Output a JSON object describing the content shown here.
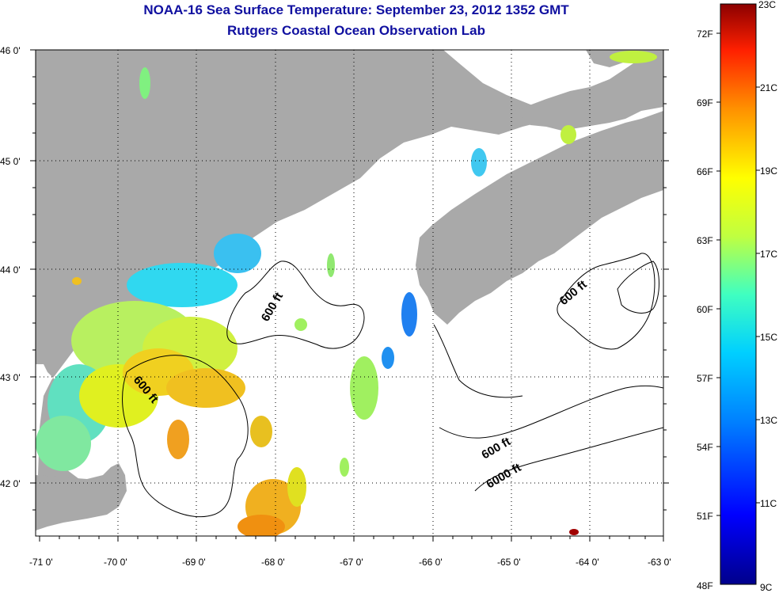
{
  "header": {
    "title": "NOAA-16 Sea Surface Temperature:  September 23, 2012 1352 GMT",
    "subtitle": "Rutgers Coastal Ocean Observation Lab"
  },
  "map": {
    "lon_range": [
      -71,
      -63
    ],
    "lat_range": [
      41.5,
      46
    ],
    "x_ticks": [
      "-71 0'",
      "-70 0'",
      "-69 0'",
      "-68 0'",
      "-67 0'",
      "-66 0'",
      "-65 0'",
      "-64 0'",
      "-63 0'"
    ],
    "y_ticks": [
      "46 0'",
      "45 0'",
      "44 0'",
      "43 0'",
      "42 0'"
    ],
    "land_color": "#a9a9a9",
    "cloud_color": "#ffffff",
    "gridlines": "dotted",
    "contour_labels": [
      "600 ft",
      "600 ft",
      "600 ft",
      "600 ft",
      "6000 ft"
    ]
  },
  "colorbar": {
    "celsius_ticks": [
      "23C",
      "21C",
      "19C",
      "17C",
      "15C",
      "13C",
      "11C",
      "9C"
    ],
    "fahrenheit_ticks": [
      "72F",
      "69F",
      "66F",
      "63F",
      "60F",
      "57F",
      "54F",
      "51F",
      "48F"
    ],
    "colors": [
      "#00008b",
      "#0000ff",
      "#0080ff",
      "#00d0ff",
      "#40ffc0",
      "#c0ff40",
      "#ffff00",
      "#ff9000",
      "#ff2000",
      "#8b0000"
    ]
  }
}
